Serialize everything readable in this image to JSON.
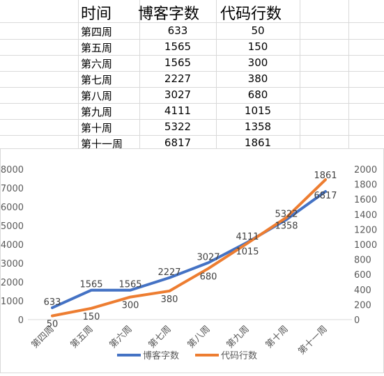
{
  "table": {
    "headers": [
      "时间",
      "博客字数",
      "代码行数"
    ],
    "rows": [
      [
        "第四周",
        "633",
        "50"
      ],
      [
        "第五周",
        "1565",
        "150"
      ],
      [
        "第六周",
        "1565",
        "300"
      ],
      [
        "第七周",
        "2227",
        "380"
      ],
      [
        "第八周",
        "3027",
        "680"
      ],
      [
        "第九周",
        "4111",
        "1015"
      ],
      [
        "第十周",
        "5322",
        "1358"
      ],
      [
        "第十一周",
        "6817",
        "1861"
      ]
    ]
  },
  "chart_data": {
    "type": "line",
    "categories": [
      "第四周",
      "第五周",
      "第六周",
      "第七周",
      "第八周",
      "第九周",
      "第十周",
      "第十一周"
    ],
    "series": [
      {
        "name": "博客字数",
        "axis": "left",
        "color": "#4472C4",
        "values": [
          633,
          1565,
          1565,
          2227,
          3027,
          4111,
          5322,
          6817
        ]
      },
      {
        "name": "代码行数",
        "axis": "right",
        "color": "#ED7D31",
        "values": [
          50,
          150,
          300,
          380,
          680,
          1015,
          1358,
          1861
        ]
      }
    ],
    "y_left": {
      "min": 0,
      "max": 8000,
      "step": 1000,
      "ticks": [
        "0",
        "1000",
        "2000",
        "3000",
        "4000",
        "5000",
        "6000",
        "7000",
        "8000"
      ]
    },
    "y_right": {
      "min": 0,
      "max": 2000,
      "step": 200,
      "ticks": [
        "0",
        "200",
        "400",
        "600",
        "800",
        "1000",
        "1200",
        "1400",
        "1600",
        "1800",
        "2000"
      ]
    },
    "data_labels": true,
    "grid": false,
    "legend_position": "bottom"
  }
}
